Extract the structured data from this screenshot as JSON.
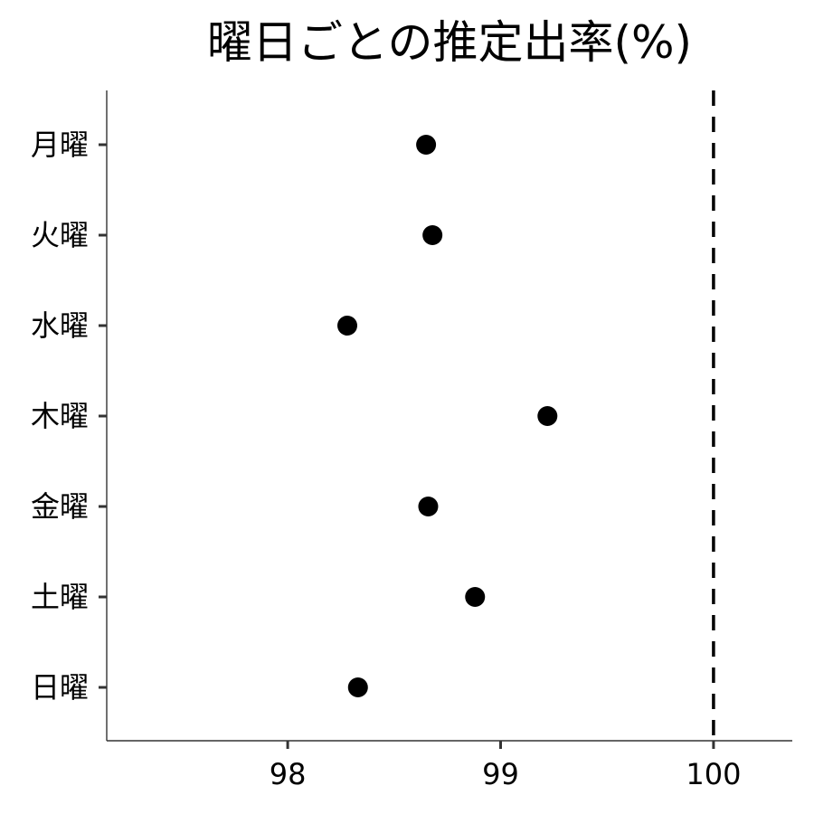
{
  "chart_data": {
    "type": "scatter",
    "title": "曜日ごとの推定出率(%)",
    "xlabel": "",
    "ylabel": "",
    "xlim": [
      97.15,
      100.37
    ],
    "x_ticks": [
      98,
      99,
      100
    ],
    "categories": [
      "月曜",
      "火曜",
      "水曜",
      "木曜",
      "金曜",
      "土曜",
      "日曜"
    ],
    "values": [
      98.65,
      98.68,
      98.28,
      99.22,
      98.66,
      98.88,
      98.33
    ],
    "reference_line": {
      "x": 100,
      "style": "dashed"
    },
    "grid": false,
    "legend": "none",
    "colors": {
      "point": "#000000",
      "axis": "#333333",
      "reference": "#000000"
    }
  }
}
